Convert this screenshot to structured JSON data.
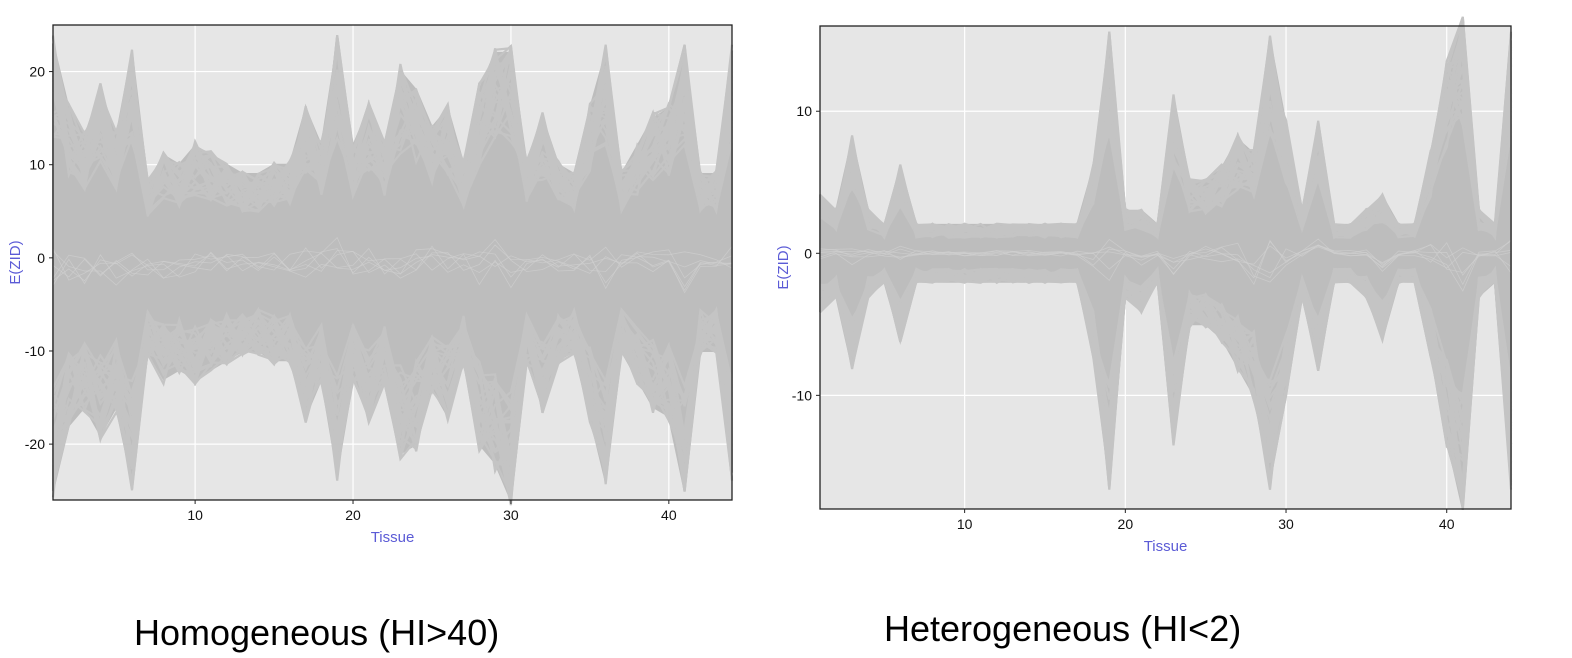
{
  "chart_data": [
    {
      "type": "line",
      "title": "",
      "xlabel": "Tissue",
      "ylabel": "E(ZID)",
      "xlim": [
        1,
        44
      ],
      "ylim": [
        -26,
        25
      ],
      "xticks": [
        10,
        20,
        30,
        40
      ],
      "yticks": [
        -20,
        -10,
        0,
        10,
        20
      ],
      "grid": true,
      "legend": "none",
      "line_color": "#bdbdbd",
      "panel_color": "#e6e6e6",
      "note": "many overlapping gene profiles",
      "x": [
        1,
        2,
        3,
        4,
        5,
        6,
        7,
        8,
        9,
        10,
        11,
        12,
        13,
        14,
        15,
        16,
        17,
        18,
        19,
        20,
        21,
        22,
        23,
        24,
        25,
        26,
        27,
        28,
        29,
        30,
        31,
        32,
        33,
        34,
        35,
        36,
        37,
        38,
        39,
        40,
        41,
        42,
        43,
        44
      ],
      "envelope_upper": [
        23,
        16,
        13,
        18,
        13,
        22,
        8,
        11,
        10,
        12,
        11,
        10,
        9,
        9,
        10,
        10,
        16,
        12,
        23,
        12,
        16,
        12,
        20,
        18,
        14,
        16,
        10,
        18,
        22,
        22,
        10,
        15,
        10,
        9,
        16,
        22,
        9,
        12,
        15,
        16,
        22,
        9,
        9,
        22
      ],
      "envelope_lower": [
        -25,
        -18,
        -16,
        -19,
        -16,
        -24,
        -10,
        -13,
        -12,
        -13,
        -12,
        -11,
        -10,
        -10,
        -11,
        -11,
        -17,
        -13,
        -23,
        -13,
        -17,
        -13,
        -21,
        -20,
        -14,
        -17,
        -11,
        -20,
        -22,
        -26,
        -11,
        -16,
        -11,
        -10,
        -17,
        -24,
        -10,
        -13,
        -16,
        -17,
        -25,
        -10,
        -10,
        -23
      ]
    },
    {
      "type": "line",
      "title": "",
      "xlabel": "Tissue",
      "ylabel": "E(ZID)",
      "xlim": [
        1,
        44
      ],
      "ylim": [
        -18,
        16
      ],
      "xticks": [
        10,
        20,
        30,
        40
      ],
      "yticks": [
        -10,
        0,
        10
      ],
      "grid": true,
      "legend": "none",
      "line_color": "#bdbdbd",
      "panel_color": "#e6e6e6",
      "note": "many overlapping gene profiles",
      "x": [
        1,
        2,
        3,
        4,
        5,
        6,
        7,
        8,
        9,
        10,
        11,
        12,
        13,
        14,
        15,
        16,
        17,
        18,
        19,
        20,
        21,
        22,
        23,
        24,
        25,
        26,
        27,
        28,
        29,
        30,
        31,
        32,
        33,
        34,
        35,
        36,
        37,
        38,
        39,
        40,
        41,
        42,
        43,
        44
      ],
      "envelope_upper": [
        4,
        3,
        8,
        3,
        2,
        6,
        2,
        2,
        2,
        2,
        2,
        2,
        2,
        2,
        2,
        2,
        2,
        6,
        15,
        3,
        3,
        2,
        11,
        5,
        5,
        6,
        8,
        7,
        15,
        9,
        3,
        9,
        2,
        2,
        3,
        4,
        2,
        2,
        7,
        13,
        16,
        3,
        2,
        15
      ],
      "envelope_lower": [
        -4,
        -3,
        -8,
        -3,
        -2,
        -6,
        -2,
        -2,
        -2,
        -2,
        -2,
        -2,
        -2,
        -2,
        -2,
        -2,
        -2,
        -7,
        -16,
        -3,
        -4,
        -2,
        -13,
        -5,
        -5,
        -6,
        -8,
        -10,
        -16,
        -10,
        -3,
        -8,
        -2,
        -2,
        -3,
        -6,
        -2,
        -2,
        -7,
        -13,
        -18,
        -3,
        -2,
        -16
      ]
    }
  ],
  "captions": {
    "left": "Homogeneous (HI>40)",
    "right": "Heterogeneous (HI<2)"
  }
}
